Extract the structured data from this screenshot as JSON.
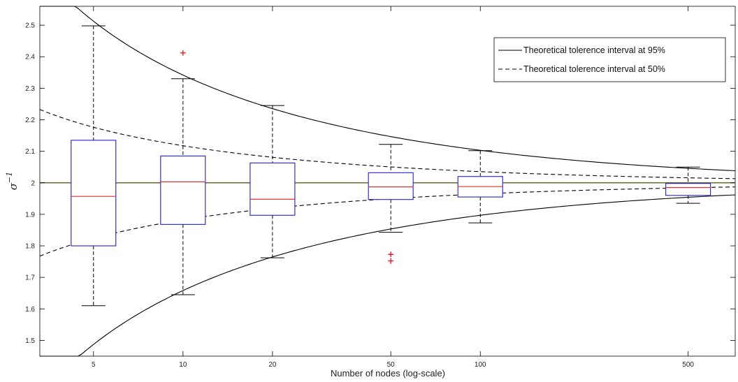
{
  "chart_data": {
    "type": "boxplot",
    "xlabel": "Number of nodes (log-scale)",
    "ylabel_symbol": "σ",
    "ylabel_exponent": "−1",
    "xscale": "log",
    "xlim": [
      3.3,
      720
    ],
    "ylim": [
      1.45,
      2.56
    ],
    "xticks": [
      5,
      10,
      20,
      50,
      100,
      500
    ],
    "yticks": [
      1.5,
      1.6,
      1.7,
      1.8,
      1.9,
      2,
      2.1,
      2.2,
      2.3,
      2.4,
      2.5
    ],
    "ytick_labels": [
      "1.5",
      "1.6",
      "1.7",
      "1.8",
      "1.9",
      "2",
      "2.1",
      "2.2",
      "2.3",
      "2.4",
      "2.5"
    ],
    "reference_line": 2,
    "boxes": [
      {
        "x": 5,
        "label": "5",
        "whisker_low": 1.61,
        "q1": 1.8,
        "median": 1.957,
        "q3": 2.135,
        "whisker_high": 2.498,
        "outliers": []
      },
      {
        "x": 10,
        "label": "10",
        "whisker_low": 1.645,
        "q1": 1.868,
        "median": 2.003,
        "q3": 2.085,
        "whisker_high": 2.33,
        "outliers": [
          2.412
        ]
      },
      {
        "x": 20,
        "label": "20",
        "whisker_low": 1.762,
        "q1": 1.897,
        "median": 1.948,
        "q3": 2.063,
        "whisker_high": 2.245,
        "outliers": []
      },
      {
        "x": 50,
        "label": "50",
        "whisker_low": 1.843,
        "q1": 1.947,
        "median": 1.987,
        "q3": 2.032,
        "whisker_high": 2.122,
        "outliers": [
          1.773,
          1.752
        ]
      },
      {
        "x": 100,
        "label": "100",
        "whisker_low": 1.873,
        "q1": 1.955,
        "median": 1.988,
        "q3": 2.02,
        "whisker_high": 2.102,
        "outliers": []
      },
      {
        "x": 500,
        "label": "500",
        "whisker_low": 1.935,
        "q1": 1.96,
        "median": 1.985,
        "q3": 1.998,
        "whisker_high": 2.05,
        "outliers": []
      }
    ],
    "series": [
      {
        "name": "Theoretical tolerence interval at 95%",
        "style": "solid",
        "k": 1.96
      },
      {
        "name": "Theoretical tolerence interval at 50%",
        "style": "dashed",
        "k": 0.674
      }
    ],
    "legend_position": "top-right",
    "colors": {
      "box": "#1f1fd6",
      "median": "#e03030",
      "whisker": "#000000",
      "outlier": "#e00000",
      "reference": "#6b6b2a",
      "curve": "#000000"
    }
  }
}
